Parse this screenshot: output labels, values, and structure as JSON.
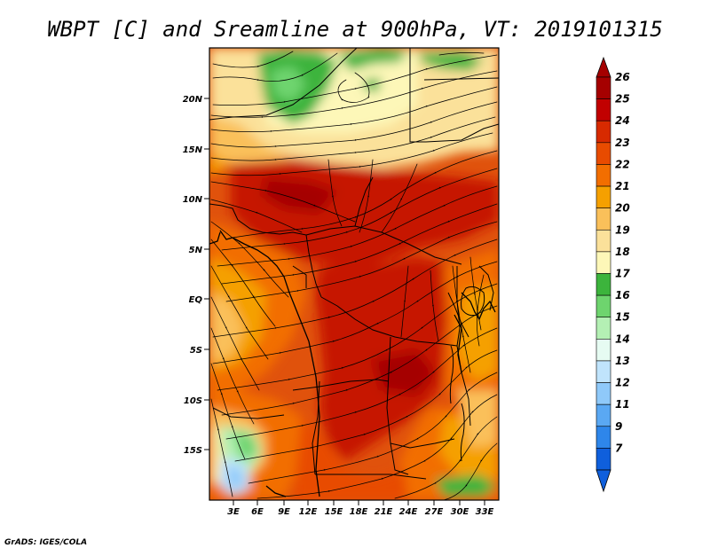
{
  "title": "WBPT [C] and Sreamline at 900hPa, VT: 2019101315",
  "credit": "GrADS: IGES/COLA",
  "map": {
    "lat_labels": [
      "20N",
      "15N",
      "10N",
      "5N",
      "EQ",
      "5S",
      "10S",
      "15S"
    ],
    "lon_labels": [
      "3E",
      "6E",
      "9E",
      "12E",
      "15E",
      "18E",
      "21E",
      "24E",
      "27E",
      "30E",
      "33E"
    ]
  },
  "colorbar": {
    "labels": [
      "26",
      "25",
      "24",
      "23",
      "22",
      "21",
      "20",
      "19",
      "18",
      "17",
      "16",
      "15",
      "14",
      "13",
      "12",
      "11",
      "9",
      "7"
    ],
    "colors": [
      "#a50000",
      "#c10000",
      "#d72a00",
      "#e84b00",
      "#f26e00",
      "#f5a000",
      "#fac05a",
      "#fbe19a",
      "#fdf7b8",
      "#3cb43c",
      "#6ed46e",
      "#b4f0b4",
      "#e6fbf2",
      "#c0e4fc",
      "#8fc9f9",
      "#5aa8f3",
      "#2e86ea",
      "#0f5fdc"
    ]
  }
}
